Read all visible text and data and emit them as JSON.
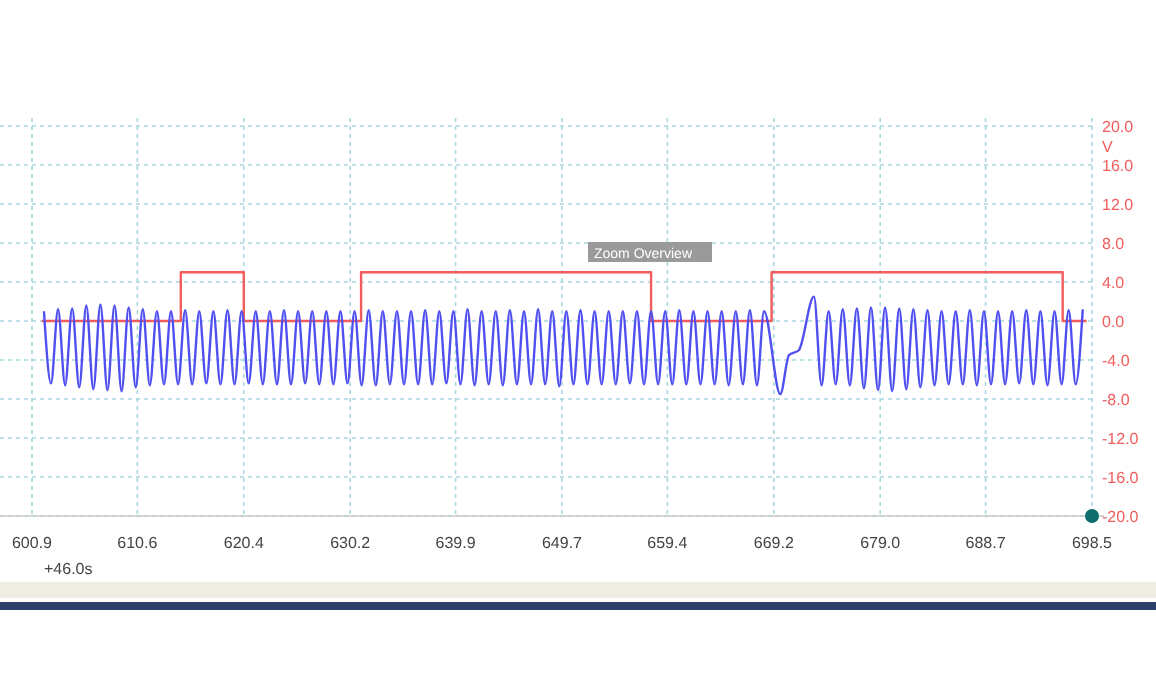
{
  "chart_data": {
    "type": "line",
    "ylabel": "V",
    "xlim": [
      600.9,
      698.5
    ],
    "xticks": [
      600.9,
      610.6,
      620.4,
      630.2,
      639.9,
      649.7,
      659.4,
      669.2,
      {
        "value": 679,
        "label": "679.0"
      },
      688.7,
      698.5
    ],
    "ylim": [
      -20,
      20
    ],
    "yticks": [
      {
        "value": -20,
        "label": "-20.0"
      },
      {
        "value": -16,
        "label": "-16.0"
      },
      {
        "value": -12,
        "label": "-12.0"
      },
      {
        "value": -8,
        "label": "-8.0"
      },
      {
        "value": -4,
        "label": "-4.0"
      },
      {
        "value": 0,
        "label": "0.0"
      },
      {
        "value": 4,
        "label": "4.0"
      },
      {
        "value": 8,
        "label": "8.0"
      },
      {
        "value": 12,
        "label": "12.0"
      },
      {
        "value": 16,
        "label": "16.0"
      },
      {
        "value": 20,
        "label": "20.0"
      }
    ],
    "grid": true,
    "line_style": "solid",
    "marker": "none",
    "annotations": [
      "Zoom Overview",
      "+46.0s"
    ],
    "series": [
      {
        "type": "step",
        "color": "#f25c5c",
        "x": [
          601.8,
          614.6,
          620.4,
          631.2,
          657.9,
          669.0,
          695.8,
          698.0
        ],
        "values": [
          0,
          5,
          0,
          5,
          0,
          5,
          0,
          0
        ]
      },
      {
        "type": "line",
        "color": "#5050f0",
        "x": [
          602.0,
          602.65,
          603.3,
          603.95,
          604.6,
          605.25,
          605.9,
          606.55,
          607.2,
          607.85,
          608.5,
          609.15,
          609.8,
          610.45,
          611.1,
          611.75,
          612.4,
          613.05,
          613.7,
          614.35,
          615.0,
          615.65,
          616.3,
          616.95,
          617.6,
          618.25,
          618.9,
          619.55,
          620.2,
          620.85,
          621.5,
          622.15,
          622.8,
          623.45,
          624.1,
          624.75,
          625.4,
          626.05,
          626.7,
          627.35,
          628.0,
          628.65,
          629.3,
          629.95,
          630.6,
          631.25,
          631.9,
          632.55,
          633.2,
          633.85,
          634.5,
          635.15,
          635.8,
          636.45,
          637.1,
          637.75,
          638.4,
          639.05,
          639.7,
          640.35,
          641.0,
          641.65,
          642.3,
          642.95,
          643.6,
          644.25,
          644.9,
          645.55,
          646.2,
          646.85,
          647.5,
          648.15,
          648.8,
          649.45,
          650.1,
          650.75,
          651.4,
          652.05,
          652.7,
          653.35,
          654.0,
          654.65,
          655.3,
          655.95,
          656.6,
          657.25,
          657.9,
          658.55,
          659.2,
          659.85,
          660.5,
          661.15,
          661.8,
          662.45,
          663.1,
          663.75,
          664.4,
          665.05,
          665.7,
          666.35,
          667.0,
          667.65,
          668.3,
          669.8,
          670.6,
          671.5,
          672.9,
          673.6,
          674.25,
          674.9,
          675.55,
          676.2,
          676.85,
          677.5,
          678.15,
          678.8,
          679.45,
          680.1,
          680.75,
          681.4,
          682.05,
          682.7,
          683.35,
          684.0,
          684.65,
          685.3,
          685.95,
          686.6,
          687.25,
          687.9,
          688.55,
          689.2,
          689.85,
          690.5,
          691.15,
          691.8,
          692.45,
          693.1,
          693.75,
          694.4,
          695.05,
          695.7,
          696.35,
          697.0,
          697.65
        ],
        "values": [
          1.0,
          -6.4,
          1.2,
          -6.6,
          1.3,
          -6.8,
          1.6,
          -7.0,
          1.7,
          -7.1,
          1.6,
          -7.2,
          1.4,
          -6.8,
          1.2,
          -6.6,
          1.0,
          -6.5,
          1.0,
          -6.5,
          1.1,
          -6.5,
          1.0,
          -6.4,
          1.0,
          -6.5,
          1.1,
          -6.5,
          1.0,
          -6.4,
          1.0,
          -6.5,
          1.0,
          -6.5,
          1.1,
          -6.5,
          1.0,
          -6.4,
          1.0,
          -6.5,
          1.0,
          -6.5,
          1.0,
          -6.4,
          1.0,
          -6.6,
          1.1,
          -6.6,
          1.0,
          -6.5,
          1.0,
          -6.5,
          1.0,
          -6.5,
          1.1,
          -6.5,
          1.0,
          -6.4,
          1.0,
          -6.5,
          1.2,
          -6.6,
          1.0,
          -6.5,
          1.0,
          -6.6,
          1.1,
          -6.5,
          1.0,
          -6.5,
          1.2,
          -6.5,
          1.0,
          -6.7,
          1.0,
          -6.5,
          1.1,
          -6.5,
          1.0,
          -6.5,
          1.0,
          -6.5,
          1.0,
          -6.4,
          1.0,
          -6.5,
          1.0,
          -6.5,
          1.0,
          -6.5,
          1.1,
          -6.5,
          1.0,
          -6.5,
          1.0,
          -6.5,
          1.0,
          -6.6,
          1.0,
          -6.5,
          1.1,
          -6.6,
          1.0,
          -7.5,
          -3.5,
          -3.0,
          2.5,
          -6.6,
          1.0,
          -6.5,
          1.2,
          -6.6,
          1.3,
          -6.9,
          1.4,
          -7.1,
          1.4,
          -7.2,
          1.3,
          -7.0,
          1.2,
          -6.8,
          1.1,
          -6.6,
          1.0,
          -6.5,
          1.0,
          -6.5,
          1.1,
          -6.6,
          1.0,
          -6.5,
          1.0,
          -6.5,
          1.0,
          -6.4,
          1.1,
          -6.5,
          1.0,
          -6.6,
          1.0,
          -6.5,
          1.1,
          -6.5,
          1.2
        ]
      }
    ]
  }
}
